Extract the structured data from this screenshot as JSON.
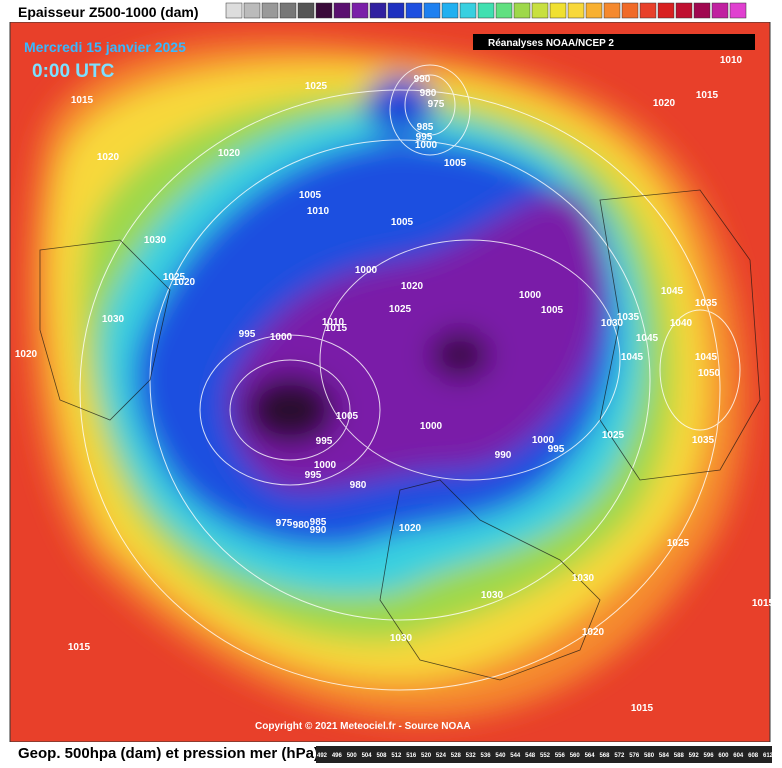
{
  "header": {
    "legend_title": "Epaisseur Z500-1000 (dam)",
    "date": "Mercredi 15 janvier 2025",
    "time": "0:00 UTC",
    "source_box": "Réanalyses NOAA/NCEP 2"
  },
  "isobar_labels": [
    990,
    980,
    975,
    985,
    995,
    1000,
    1025,
    1015,
    1020,
    1020,
    1010,
    1020,
    1015,
    1005,
    1005,
    1010,
    1005,
    1030,
    1025,
    1020,
    1000,
    1020,
    1025,
    1000,
    1005,
    1030,
    995,
    1000,
    1010,
    1015,
    1045,
    1035,
    1040,
    1035,
    1030,
    1045,
    1045,
    1045,
    1050,
    1020,
    1005,
    1000,
    995,
    1000,
    995,
    990,
    1025,
    1035,
    1000,
    995,
    980,
    975,
    980,
    985,
    990,
    1020,
    1025,
    1030,
    1030,
    1030,
    1020,
    1015,
    1015,
    1015
  ],
  "footer": {
    "copyright": "Copyright © 2021 Meteociel.fr - Source NOAA",
    "caption": "Geop. 500hpa (dam) et pression mer (hPa)",
    "scale": [
      492,
      496,
      500,
      504,
      508,
      512,
      516,
      520,
      524,
      528,
      532,
      536,
      540,
      544,
      548,
      552,
      556,
      560,
      564,
      568,
      572,
      576,
      580,
      584,
      588,
      592,
      596,
      600,
      604,
      608,
      612
    ]
  }
}
